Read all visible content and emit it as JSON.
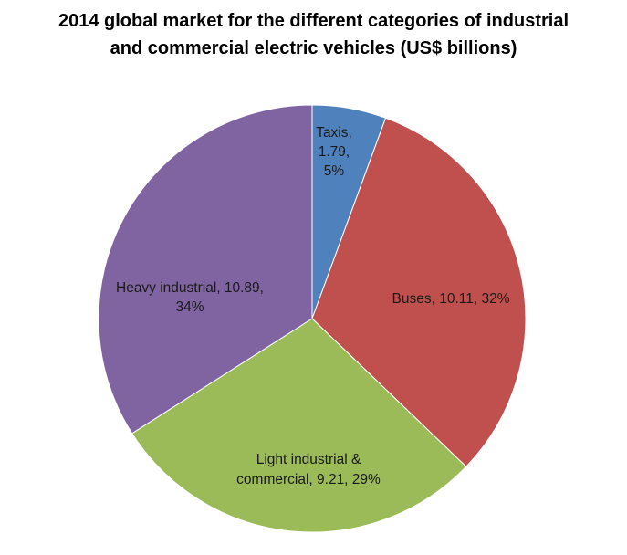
{
  "chart_data": {
    "type": "pie",
    "title": "2014 global market for the different categories of industrial and commercial electric vehicles (US$ billions)",
    "title_lines": [
      "2014 global market for the different categories of industrial",
      "and commercial electric vehicles (US$ billions)"
    ],
    "unit": "US$ billions",
    "start_angle_deg": 0,
    "direction": "clockwise",
    "legend": "none",
    "slices": [
      {
        "name": "Taxis",
        "value": 1.79,
        "percent": 5,
        "color": "#4f81bd",
        "label_lines": [
          "Taxis,",
          "1.79,",
          "5%"
        ]
      },
      {
        "name": "Buses",
        "value": 10.11,
        "percent": 32,
        "color": "#c0504d",
        "label_lines": [
          "Buses, 10.11, 32%"
        ]
      },
      {
        "name": "Light industrial & commercial",
        "value": 9.21,
        "percent": 29,
        "color": "#9bbb59",
        "label_lines": [
          "Light industrial &",
          "commercial, 9.21, 29%"
        ]
      },
      {
        "name": "Heavy industrial",
        "value": 10.89,
        "percent": 34,
        "color": "#8064a2",
        "label_lines": [
          "Heavy industrial, 10.89,",
          "34%"
        ]
      }
    ]
  }
}
